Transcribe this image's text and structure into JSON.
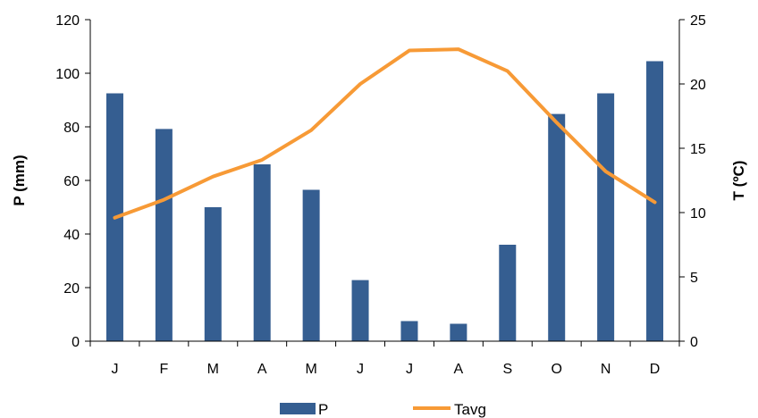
{
  "chart_data": {
    "type": "bar",
    "title": "",
    "categories": [
      "J",
      "F",
      "M",
      "A",
      "M",
      "J",
      "J",
      "A",
      "S",
      "O",
      "N",
      "D"
    ],
    "series": [
      {
        "name": "P",
        "type": "bar",
        "axis": "left",
        "color": "#355E91",
        "values": [
          92.5,
          79.2,
          50,
          66,
          56.5,
          22.8,
          7.5,
          6.5,
          36,
          84.8,
          92.5,
          104.5
        ]
      },
      {
        "name": "Tavg",
        "type": "line",
        "axis": "right",
        "color": "#F79A36",
        "values": [
          9.6,
          11,
          12.8,
          14.1,
          16.4,
          20,
          22.6,
          22.7,
          21,
          17,
          13.2,
          10.8
        ]
      }
    ],
    "ylabel": "P (mm)",
    "y2label": "T (ºC)",
    "ylim": [
      0,
      120
    ],
    "y2lim": [
      0,
      25
    ],
    "yticks": [
      0,
      20,
      40,
      60,
      80,
      100,
      120
    ],
    "y2ticks": [
      0,
      5,
      10,
      15,
      20,
      25
    ],
    "grid": false,
    "legend_position": "bottom"
  }
}
